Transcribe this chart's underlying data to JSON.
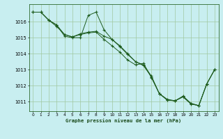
{
  "title": "Graphe pression niveau de la mer (hPa)",
  "background_color": "#c8eef0",
  "plot_bg_color": "#c8eef0",
  "grid_color": "#a0c8a0",
  "line_color": "#1e5c1e",
  "marker_color": "#1e5c1e",
  "xlim": [
    -0.5,
    23.5
  ],
  "ylim": [
    1010.4,
    1017.1
  ],
  "xticks": [
    0,
    1,
    2,
    3,
    4,
    5,
    6,
    7,
    8,
    9,
    10,
    11,
    12,
    13,
    14,
    15,
    16,
    17,
    18,
    19,
    20,
    21,
    22,
    23
  ],
  "yticks": [
    1011,
    1012,
    1013,
    1014,
    1015,
    1016
  ],
  "series1": [
    1016.6,
    1016.6,
    1016.1,
    1015.8,
    1015.1,
    1015.0,
    1015.0,
    1016.4,
    1016.6,
    1015.5,
    1014.9,
    1014.5,
    1014.0,
    1013.5,
    1013.3,
    1012.6,
    1011.5,
    1011.1,
    1011.05,
    1011.3,
    1010.85,
    1010.75,
    1012.1,
    1013.0
  ],
  "series2": [
    1016.6,
    1016.6,
    1016.1,
    1015.7,
    1015.2,
    1015.05,
    1015.2,
    1015.3,
    1015.35,
    1014.9,
    1014.5,
    1014.1,
    1013.6,
    1013.3,
    1013.4,
    1012.5,
    1011.5,
    1011.15,
    1011.05,
    1011.35,
    1010.9,
    1010.75,
    1012.1,
    1013.0
  ],
  "series3": [
    1016.6,
    1016.6,
    1016.1,
    1015.8,
    1015.2,
    1015.05,
    1015.25,
    1015.35,
    1015.4,
    1015.1,
    1014.9,
    1014.45,
    1013.95,
    1013.5,
    1013.25,
    1012.55,
    1011.5,
    1011.1,
    1011.05,
    1011.3,
    1010.87,
    1010.75,
    1012.1,
    1013.0
  ]
}
